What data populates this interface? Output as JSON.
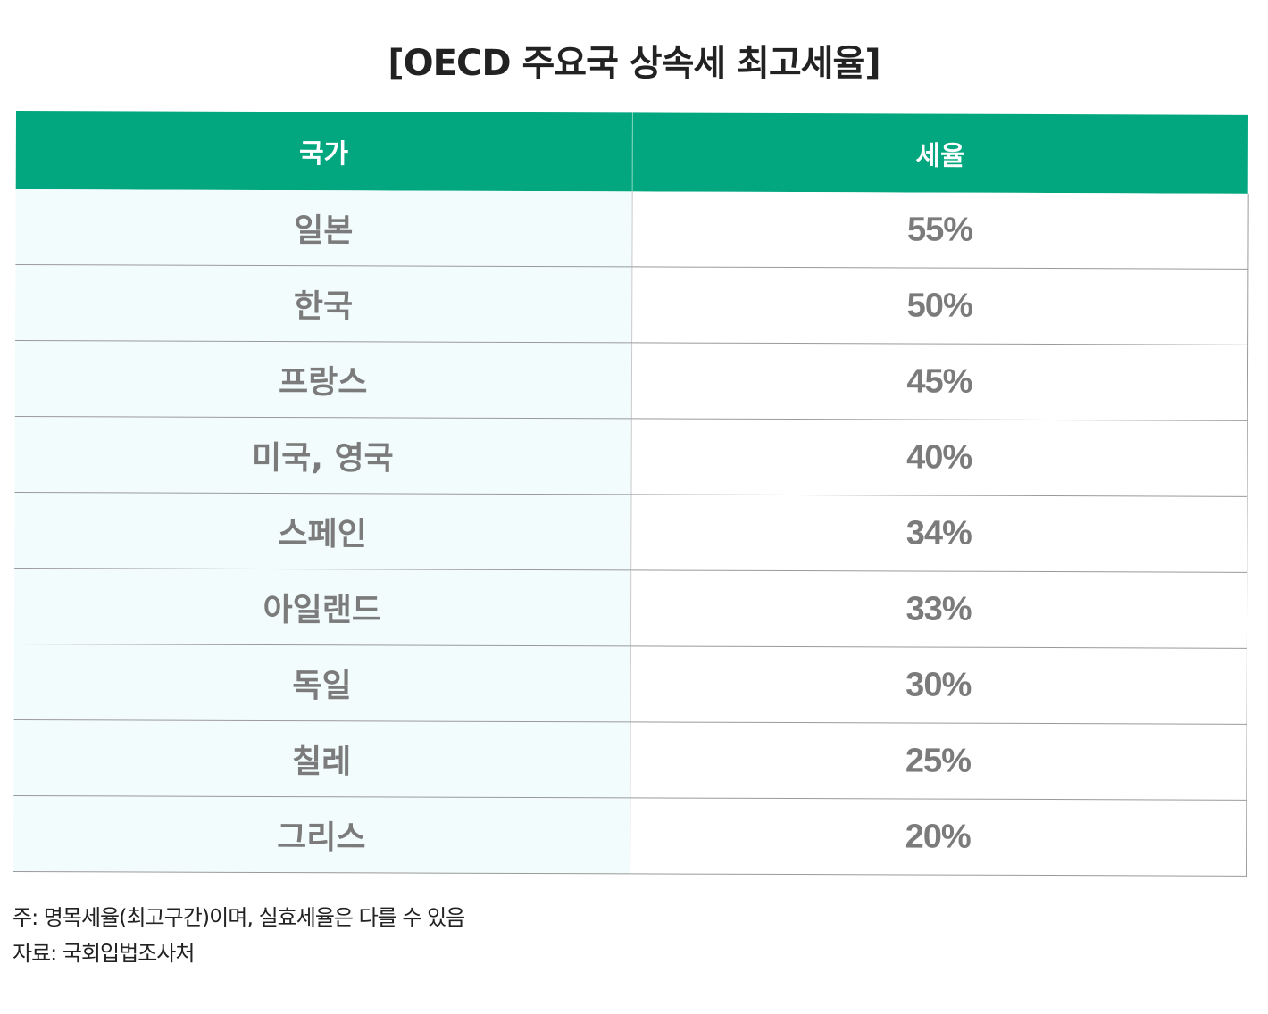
{
  "title": "[OECD 주요국 상속세 최고세율]",
  "chart_data": {
    "type": "table",
    "title": "[OECD 주요국 상속세 최고세율]",
    "columns": [
      "국가",
      "세율"
    ],
    "rows": [
      {
        "country": "일본",
        "rate": "55%"
      },
      {
        "country": "한국",
        "rate": "50%"
      },
      {
        "country": "프랑스",
        "rate": "45%"
      },
      {
        "country": "미국, 영국",
        "rate": "40%"
      },
      {
        "country": "스페인",
        "rate": "34%"
      },
      {
        "country": "아일랜드",
        "rate": "33%"
      },
      {
        "country": "독일",
        "rate": "30%"
      },
      {
        "country": "칠레",
        "rate": "25%"
      },
      {
        "country": "그리스",
        "rate": "20%"
      }
    ]
  },
  "notes": {
    "note": "주: 명목세율(최고구간)이며, 실효세율은 다를 수 있음",
    "source": "자료: 국회입법조사처"
  },
  "colors": {
    "header_bg": "#02a67f",
    "header_text": "#ffffff",
    "country_cell_bg": "#f3fcfd",
    "cell_text": "#7b7b7b"
  }
}
